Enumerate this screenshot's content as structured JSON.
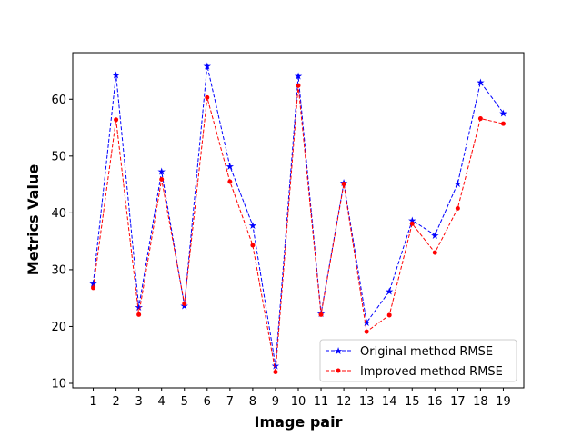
{
  "chart_data": {
    "type": "line",
    "title": "",
    "xlabel": "Image pair",
    "ylabel": "Metrics Value",
    "x": [
      1,
      2,
      3,
      4,
      5,
      6,
      7,
      8,
      9,
      10,
      11,
      12,
      13,
      14,
      15,
      16,
      17,
      18,
      19
    ],
    "xlim": [
      0.1,
      19.9
    ],
    "ylim": [
      9.2,
      68.2
    ],
    "yticks": [
      10,
      20,
      30,
      40,
      50,
      60
    ],
    "grid": false,
    "legend_position": "lower-right",
    "series": [
      {
        "name": "Original method RMSE",
        "color": "#0000ff",
        "linestyle": "dashed",
        "marker": "star",
        "values": [
          27.6,
          64.3,
          23.4,
          47.3,
          23.7,
          65.9,
          48.2,
          37.8,
          13.1,
          64.1,
          22.3,
          45.3,
          20.7,
          26.2,
          38.7,
          36.1,
          45.2,
          63.0,
          57.6
        ]
      },
      {
        "name": "Improved method RMSE",
        "color": "#ff0000",
        "linestyle": "dashed",
        "marker": "dot",
        "values": [
          26.8,
          56.4,
          22.1,
          45.9,
          24.0,
          60.3,
          45.5,
          34.3,
          12.0,
          62.4,
          22.1,
          45.1,
          19.1,
          22.0,
          38.1,
          33.0,
          40.8,
          56.6,
          55.7
        ]
      }
    ]
  }
}
